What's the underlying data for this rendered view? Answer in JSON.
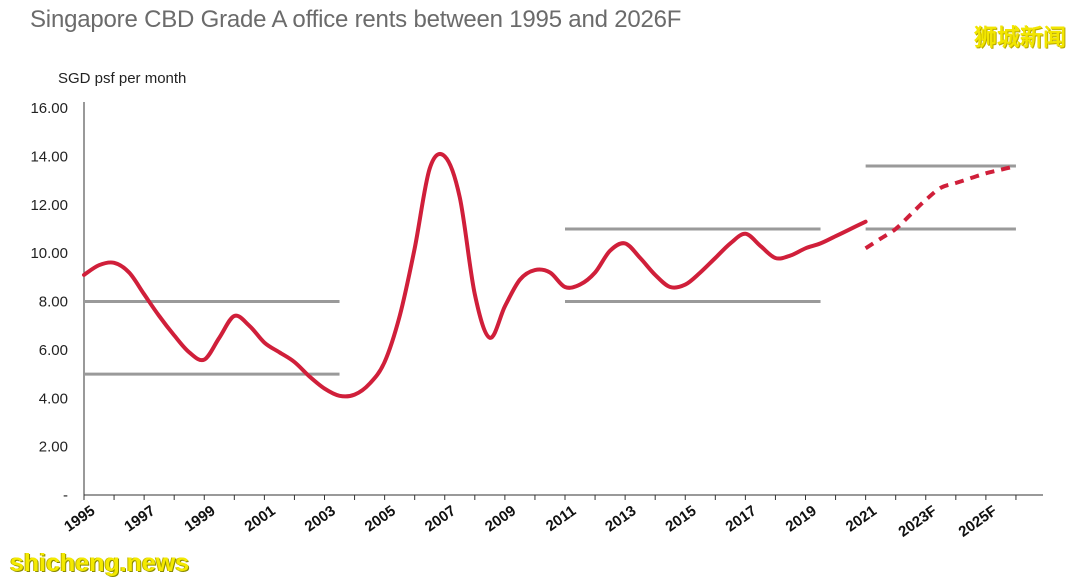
{
  "title": "Singapore CBD Grade A office rents between 1995 and 2026F",
  "watermark_cn": "狮城新闻",
  "watermark_en": "shicheng.news",
  "chart_data": {
    "type": "line",
    "ylabel": "SGD psf per month",
    "ylim": [
      0,
      16
    ],
    "yticks": [
      "-",
      "2.00",
      "4.00",
      "6.00",
      "8.00",
      "10.00",
      "12.00",
      "14.00",
      "16.00"
    ],
    "x_tick_labels": [
      "1995",
      "1997",
      "1999",
      "2001",
      "2003",
      "2005",
      "2007",
      "2009",
      "2011",
      "2013",
      "2015",
      "2017",
      "2019",
      "2021",
      "2023F",
      "2025F"
    ],
    "grid": false,
    "series": [
      {
        "style": "solid",
        "color": "#d01f3a",
        "x": [
          1995.0,
          1995.5,
          1996.0,
          1996.5,
          1997.0,
          1997.5,
          1998.0,
          1998.5,
          1999.0,
          1999.5,
          2000.0,
          2000.5,
          2001.0,
          2001.5,
          2002.0,
          2002.5,
          2003.0,
          2003.5,
          2004.0,
          2004.5,
          2005.0,
          2005.5,
          2006.0,
          2006.5,
          2007.0,
          2007.5,
          2008.0,
          2008.5,
          2009.0,
          2009.5,
          2010.0,
          2010.5,
          2011.0,
          2011.5,
          2012.0,
          2012.5,
          2013.0,
          2013.5,
          2014.0,
          2014.5,
          2015.0,
          2015.5,
          2016.0,
          2016.5,
          2017.0,
          2017.5,
          2018.0,
          2018.5,
          2019.0,
          2019.5,
          2020.0,
          2020.5,
          2021.0
        ],
        "values": [
          9.1,
          9.5,
          9.6,
          9.2,
          8.3,
          7.4,
          6.6,
          5.9,
          5.6,
          6.5,
          7.4,
          7.0,
          6.3,
          5.9,
          5.5,
          4.9,
          4.4,
          4.1,
          4.15,
          4.6,
          5.5,
          7.4,
          10.2,
          13.5,
          14.0,
          12.3,
          8.3,
          6.5,
          7.8,
          8.9,
          9.3,
          9.2,
          8.6,
          8.7,
          9.2,
          10.1,
          10.4,
          9.8,
          9.1,
          8.6,
          8.7,
          9.2,
          9.8,
          10.4,
          10.8,
          10.3,
          9.8,
          9.9,
          10.2,
          10.4,
          10.7,
          11.0,
          11.3
        ]
      },
      {
        "style": "dashed",
        "color": "#d01f3a",
        "x": [
          2021.0,
          2021.5,
          2022.0,
          2022.5,
          2023.0,
          2023.5,
          2024.0,
          2024.5,
          2025.0,
          2025.5,
          2026.0
        ],
        "values": [
          10.2,
          10.6,
          11.0,
          11.6,
          12.2,
          12.7,
          12.9,
          13.1,
          13.3,
          13.45,
          13.6
        ]
      }
    ],
    "ranges": [
      {
        "x1": 1995.0,
        "x2": 2003.5,
        "y": 8.0
      },
      {
        "x1": 1995.0,
        "x2": 2003.5,
        "y": 5.0
      },
      {
        "x1": 2011.0,
        "x2": 2019.5,
        "y": 11.0
      },
      {
        "x1": 2011.0,
        "x2": 2019.5,
        "y": 8.0
      },
      {
        "x1": 2021.0,
        "x2": 2026.0,
        "y": 13.6
      },
      {
        "x1": 2021.0,
        "x2": 2026.0,
        "y": 11.0
      }
    ],
    "range_color": "#9a9a9a"
  }
}
